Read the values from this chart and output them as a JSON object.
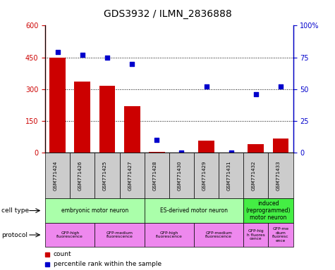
{
  "title": "GDS3932 / ILMN_2836888",
  "samples": [
    "GSM771424",
    "GSM771426",
    "GSM771425",
    "GSM771427",
    "GSM771428",
    "GSM771430",
    "GSM771429",
    "GSM771431",
    "GSM771432",
    "GSM771433"
  ],
  "counts": [
    450,
    335,
    315,
    220,
    4,
    0,
    55,
    0,
    40,
    65
  ],
  "percentiles": [
    79,
    77,
    75,
    70,
    10,
    0,
    52,
    0,
    46,
    52
  ],
  "bar_color": "#cc0000",
  "dot_color": "#0000cc",
  "ylim_left": [
    0,
    600
  ],
  "ylim_right": [
    0,
    100
  ],
  "ytick_labels_left": [
    "0",
    "150",
    "300",
    "450",
    "600"
  ],
  "ytick_labels_right": [
    "0",
    "25",
    "50",
    "75",
    "100%"
  ],
  "cell_types": [
    {
      "label": "embryonic motor neuron",
      "start": 0,
      "end": 3,
      "color": "#aaffaa"
    },
    {
      "label": "ES-derived motor neuron",
      "start": 4,
      "end": 7,
      "color": "#aaffaa"
    },
    {
      "label": "induced\n(reprogrammed)\nmotor neuron",
      "start": 8,
      "end": 9,
      "color": "#44ee44"
    }
  ],
  "protocols": [
    {
      "label": "GFP-high\nfluorescence",
      "start": 0,
      "end": 1,
      "color": "#ee88ee"
    },
    {
      "label": "GFP-medium\nfluorescence",
      "start": 2,
      "end": 3,
      "color": "#ee88ee"
    },
    {
      "label": "GFP-high\nfluorescence",
      "start": 4,
      "end": 5,
      "color": "#ee88ee"
    },
    {
      "label": "GFP-medium\nfluorescence",
      "start": 6,
      "end": 7,
      "color": "#ee88ee"
    },
    {
      "label": "GFP-hig\nh fluores\ncence",
      "start": 8,
      "end": 8,
      "color": "#ee88ee"
    },
    {
      "label": "GFP-me\ndium\nfluoresc\nence",
      "start": 9,
      "end": 9,
      "color": "#ee88ee"
    }
  ],
  "legend_count_color": "#cc0000",
  "legend_dot_color": "#0000cc",
  "bg_color": "#ffffff",
  "sample_bg_color": "#cccccc"
}
